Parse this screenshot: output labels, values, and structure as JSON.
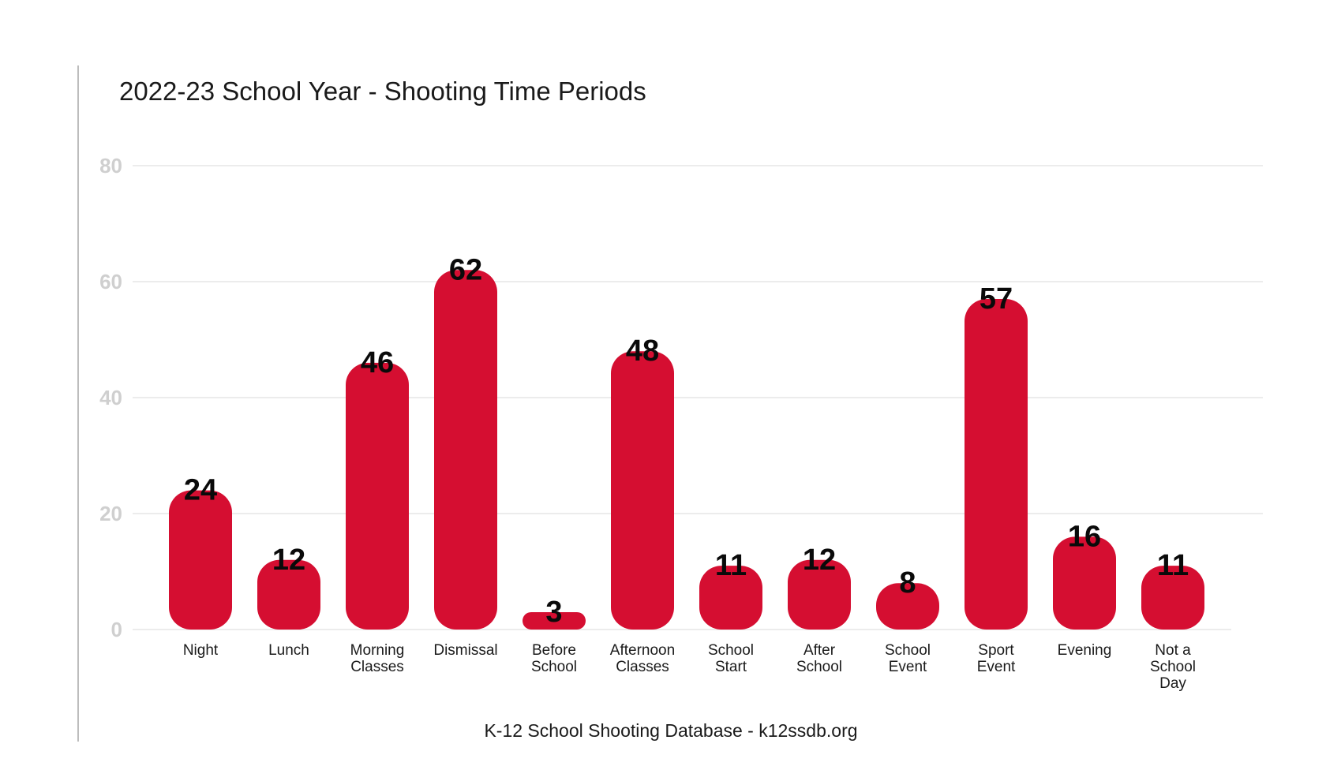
{
  "chart_data": {
    "type": "bar",
    "title": "2022-23 School Year - Shooting Time Periods",
    "source": "K-12 School Shooting Database - k12ssdb.org",
    "categories": [
      "Night",
      "Lunch",
      "Morning Classes",
      "Dismissal",
      "Before School",
      "Afternoon Classes",
      "School Start",
      "After School",
      "School Event",
      "Sport Event",
      "Evening",
      "Not a School Day"
    ],
    "values": [
      24,
      12,
      46,
      62,
      3,
      48,
      11,
      12,
      8,
      57,
      16,
      11
    ],
    "ylim": [
      0,
      80
    ],
    "yticks": [
      "0",
      "20",
      "40",
      "60",
      "80"
    ],
    "grid": true,
    "legend": "none",
    "bar_color": "#d50e31",
    "xlabel": "",
    "ylabel": ""
  }
}
